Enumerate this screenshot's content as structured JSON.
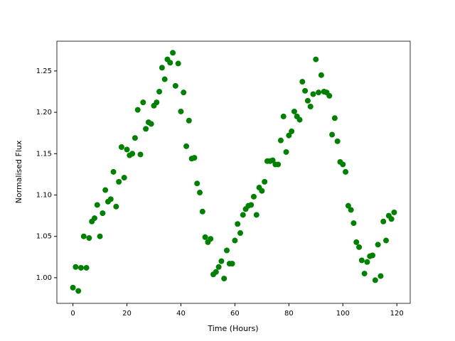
{
  "chart_data": {
    "type": "scatter",
    "xlabel": "Time (Hours)",
    "ylabel": "Normalised Flux",
    "color": "green",
    "xlim": [
      -5.95,
      124.95
    ],
    "ylim": [
      0.969,
      1.286
    ],
    "xticks": [
      0,
      20,
      40,
      60,
      80,
      100,
      120
    ],
    "yticks": [
      {
        "value": 1.0,
        "label": "1.00"
      },
      1.05,
      {
        "value": 1.1,
        "label": "1.10"
      },
      1.15,
      {
        "value": 1.2,
        "label": "1.20"
      },
      1.25
    ],
    "x": [
      0,
      1,
      2,
      3,
      4,
      5,
      6,
      7,
      8,
      9,
      10,
      11,
      12,
      13,
      14,
      15,
      16,
      17,
      18,
      19,
      20,
      21,
      22,
      23,
      24,
      25,
      26,
      27,
      28,
      29,
      30,
      31,
      32,
      33,
      34,
      35,
      36,
      37,
      38,
      39,
      40,
      41,
      42,
      43,
      44,
      45,
      46,
      47,
      48,
      49,
      50,
      51,
      52,
      53,
      54,
      55,
      56,
      57,
      58,
      59,
      60,
      61,
      62,
      63,
      64,
      65,
      66,
      67,
      68,
      69,
      70,
      71,
      72,
      73,
      74,
      75,
      76,
      77,
      78,
      79,
      80,
      81,
      82,
      83,
      84,
      85,
      86,
      87,
      88,
      89,
      90,
      91,
      92,
      93,
      94,
      95,
      96,
      97,
      98,
      99,
      100,
      101,
      102,
      103,
      104,
      105,
      106,
      107,
      108,
      109,
      110,
      111,
      112,
      113,
      114,
      115,
      116,
      117,
      118,
      119
    ],
    "values": [
      0.988,
      1.013,
      0.984,
      1.012,
      1.05,
      1.012,
      1.048,
      1.068,
      1.072,
      1.088,
      1.05,
      1.078,
      1.106,
      1.092,
      1.095,
      1.128,
      1.086,
      1.116,
      1.158,
      1.121,
      1.155,
      1.148,
      1.15,
      1.169,
      1.203,
      1.149,
      1.212,
      1.18,
      1.188,
      1.186,
      1.208,
      1.212,
      1.225,
      1.254,
      1.24,
      1.264,
      1.26,
      1.272,
      1.232,
      1.259,
      1.201,
      1.224,
      1.159,
      1.19,
      1.144,
      1.145,
      1.114,
      1.103,
      1.08,
      1.049,
      1.043,
      1.047,
      1.004,
      1.007,
      1.013,
      1.02,
      0.999,
      1.033,
      1.017,
      1.017,
      1.045,
      1.065,
      1.054,
      1.076,
      1.083,
      1.087,
      1.088,
      1.098,
      1.076,
      1.109,
      1.105,
      1.116,
      1.141,
      1.141,
      1.142,
      1.137,
      1.137,
      1.166,
      1.195,
      1.152,
      1.172,
      1.177,
      1.201,
      1.195,
      1.191,
      1.237,
      1.226,
      1.214,
      1.207,
      1.222,
      1.264,
      1.224,
      1.245,
      1.225,
      1.224,
      1.22,
      1.173,
      1.193,
      1.165,
      1.14,
      1.137,
      1.128,
      1.087,
      1.082,
      1.066,
      1.043,
      1.037,
      1.021,
      1.005,
      1.019,
      1.026,
      1.027,
      0.997,
      1.04,
      1.002,
      1.068,
      1.045,
      1.075,
      1.071,
      1.079
    ]
  }
}
